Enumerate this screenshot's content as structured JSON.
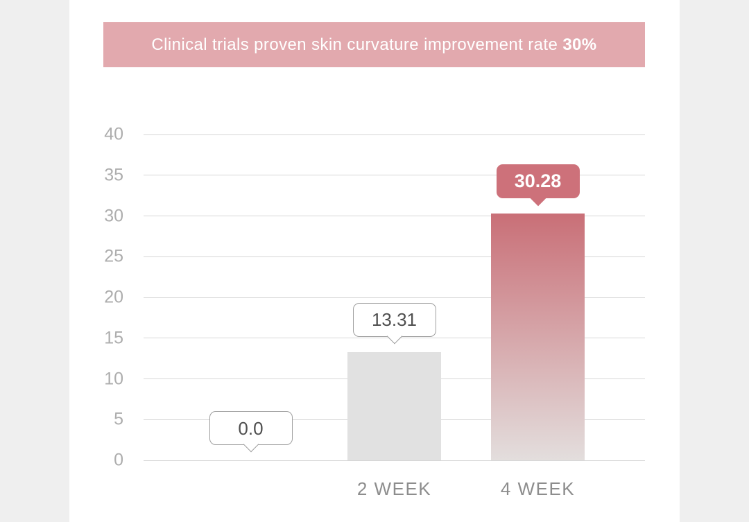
{
  "banner": {
    "text_prefix": "Clinical trials proven skin curvature improvement rate ",
    "text_emphasis": "30%"
  },
  "colors": {
    "page_bg": "#efefef",
    "panel_bg": "#ffffff",
    "banner_bg": "#e2a9ae",
    "banner_text": "#ffffff",
    "gridline": "#d6d6d6",
    "tick_label": "#adadad",
    "axis_label": "#8d8d8d",
    "bar_flat": "#e1e1e1",
    "bar_gradient_from": "#c96f77",
    "bar_gradient_to": "#e3dedd",
    "callout_outline_border": "#9e9e9e",
    "callout_outline_text": "#4f4f4f",
    "callout_filled_bg": "#cd717a",
    "callout_filled_text": "#ffffff"
  },
  "chart_data": {
    "type": "bar",
    "title": "Clinical trials proven skin curvature improvement rate 30%",
    "xlabel": "",
    "ylabel": "",
    "categories": [
      "",
      "2 WEEK",
      "4 WEEK"
    ],
    "values": [
      0.0,
      13.31,
      30.28
    ],
    "value_labels": [
      "0.0",
      "13.31",
      "30.28"
    ],
    "ylim": [
      0,
      40
    ],
    "yticks": [
      40,
      35,
      30,
      25,
      20,
      15,
      10,
      5,
      0
    ],
    "grid": true,
    "legend": "none",
    "bar_styles": [
      {
        "type": "none"
      },
      {
        "type": "flat",
        "color": "#e1e1e1"
      },
      {
        "type": "gradient",
        "from": "#c96f77",
        "to": "#e3dedd"
      }
    ],
    "callout_styles": [
      {
        "variant": "outline"
      },
      {
        "variant": "outline"
      },
      {
        "variant": "filled",
        "bg": "#cd717a"
      }
    ]
  }
}
